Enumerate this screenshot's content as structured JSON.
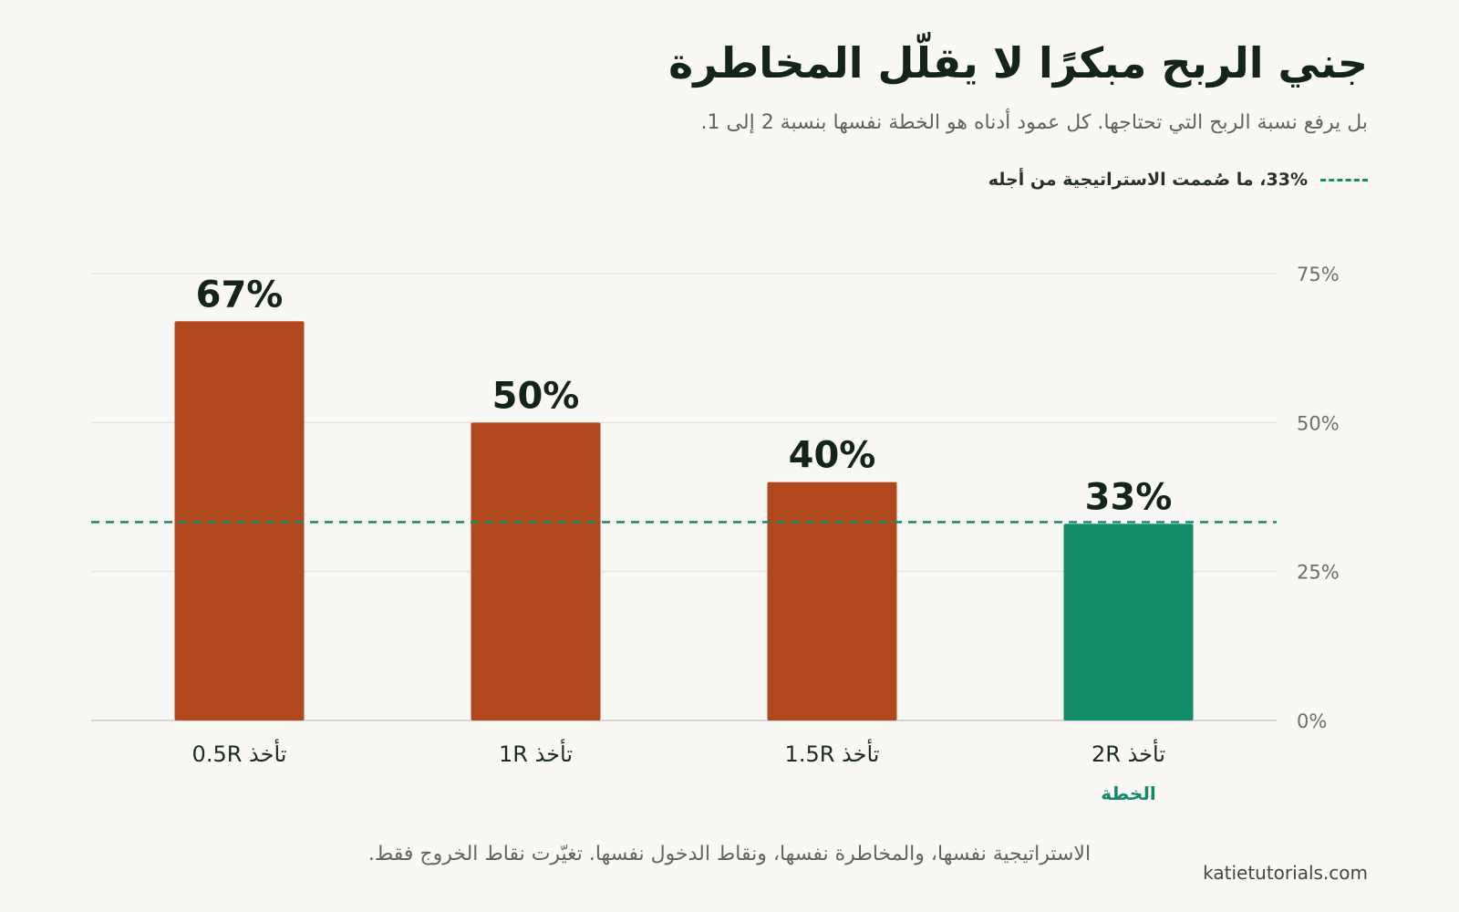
{
  "chart_data": {
    "type": "bar",
    "title": "جني الربح مبكرًا لا يقلّل المخاطرة",
    "subtitle": "بل يرفع نسبة الربح التي تحتاجها. كل عمود أدناه هو الخطة نفسها بنسبة 2 إلى 1.",
    "categories": [
      "تأخذ 0.5R",
      "تأخذ 1R",
      "تأخذ 1.5R",
      "تأخذ 2R"
    ],
    "values": [
      67,
      50,
      40,
      33
    ],
    "value_labels": [
      "67%",
      "50%",
      "40%",
      "33%"
    ],
    "highlight_index": 3,
    "highlight_sublabel": "الخطة",
    "reference_line": {
      "value": 33.3,
      "label": "33%، ما صُممت الاستراتيجية من أجله"
    },
    "ylim": [
      0,
      75
    ],
    "yticks": [
      0,
      25,
      50,
      75
    ],
    "ytick_labels": [
      "0%",
      "25%",
      "50%",
      "75%"
    ],
    "y_axis_position": "right",
    "grid": true,
    "colors": {
      "bar": "#b1481d",
      "highlight": "#138a68",
      "reference": "#138a68",
      "grid": "#e6e4df"
    }
  },
  "caption": "الاستراتيجية نفسها، والمخاطرة نفسها، ونقاط الدخول نفسها. تغيّرت نقاط الخروج فقط.",
  "credit": "katietutorials.com"
}
